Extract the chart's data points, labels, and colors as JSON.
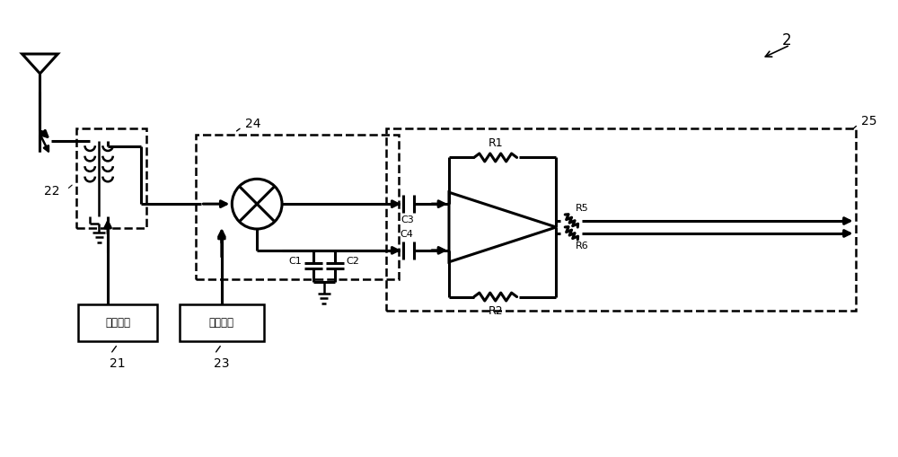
{
  "bg_color": "#ffffff",
  "line_color": "#000000",
  "lw": 1.8,
  "lw_thick": 2.2,
  "fig_width": 10.0,
  "fig_height": 5.09,
  "dpi": 100,
  "labels": {
    "antenna_label": "22",
    "bias_label": "偏置模块",
    "lo_label": "本振模块",
    "lo_num": "23",
    "bias_num": "21",
    "mixer_box": "24",
    "amp_box": "25",
    "R1": "R1",
    "R2": "R2",
    "R5": "R5",
    "R6": "R6",
    "C1": "C1",
    "C2": "C2",
    "C3": "C3",
    "C4": "C4",
    "top_label": "2"
  }
}
